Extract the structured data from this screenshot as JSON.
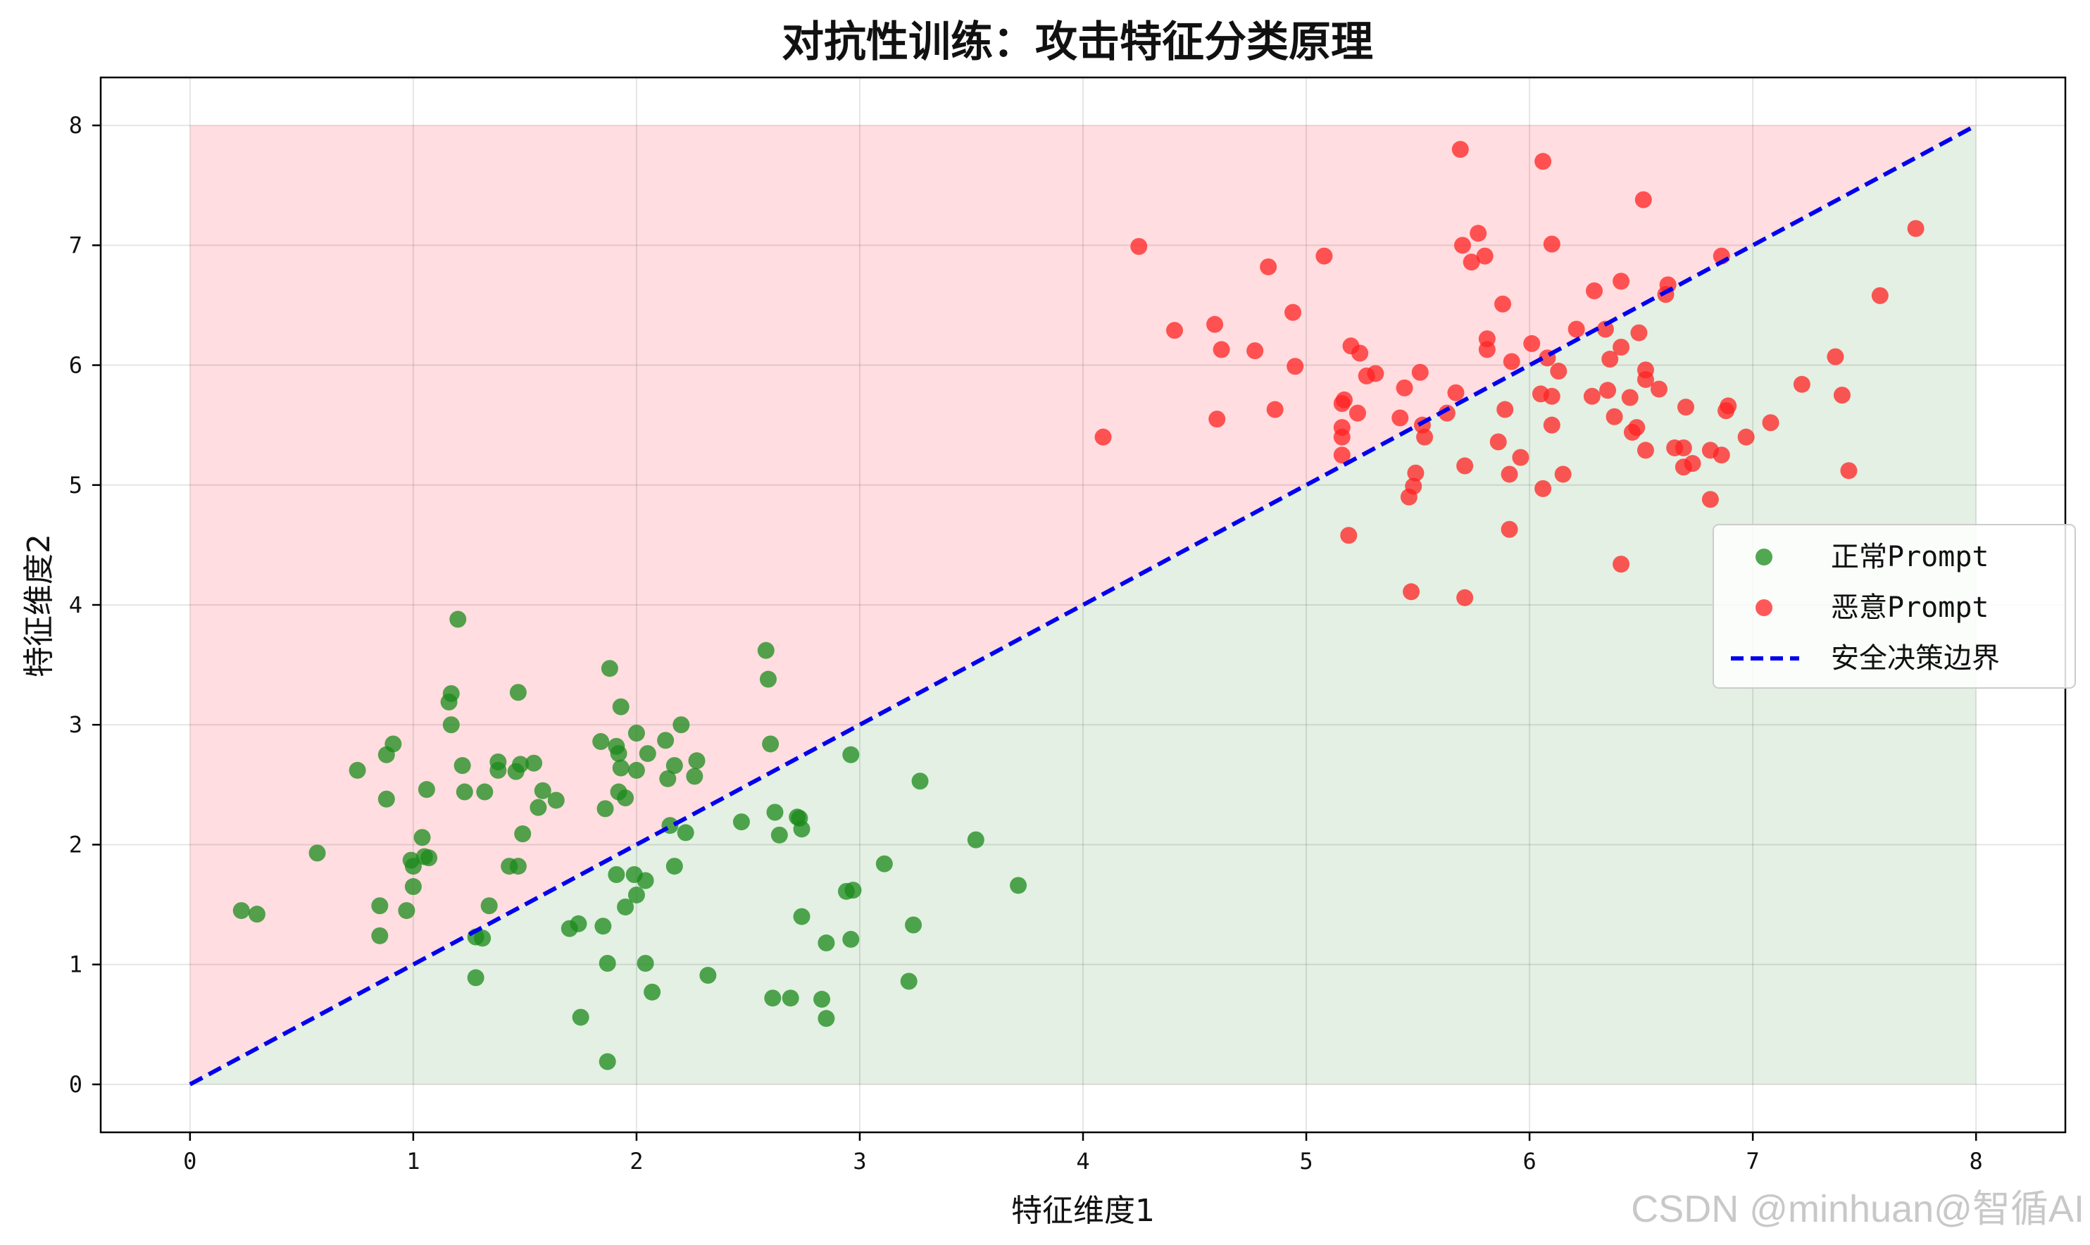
{
  "chart_data": {
    "type": "scatter",
    "title": "对抗性训练：攻击特征分类原理",
    "xlabel": "特征维度1",
    "ylabel": "特征维度2",
    "xlim": [
      -0.4,
      8.4
    ],
    "ylim": [
      -0.4,
      8.4
    ],
    "xticks": [
      0,
      1,
      2,
      3,
      4,
      5,
      6,
      7,
      8
    ],
    "yticks": [
      0,
      1,
      2,
      3,
      4,
      5,
      6,
      7,
      8
    ],
    "grid": true,
    "legend_position": "center-right",
    "regions": [
      {
        "name": "unsafe-region",
        "color": "#ffdde0",
        "polygon": [
          [
            0,
            0
          ],
          [
            0,
            8
          ],
          [
            8,
            8
          ]
        ]
      },
      {
        "name": "safe-region",
        "color": "#e3f0e3",
        "polygon": [
          [
            0,
            0
          ],
          [
            8,
            0
          ],
          [
            8,
            8
          ]
        ]
      }
    ],
    "series": [
      {
        "name": "正常Prompt",
        "color": "#1a8a1a",
        "points": [
          [
            0.23,
            1.45
          ],
          [
            0.3,
            1.42
          ],
          [
            0.57,
            1.93
          ],
          [
            0.75,
            2.62
          ],
          [
            0.85,
            1.49
          ],
          [
            0.85,
            1.24
          ],
          [
            0.88,
            2.75
          ],
          [
            0.91,
            2.84
          ],
          [
            0.88,
            2.38
          ],
          [
            0.97,
            1.45
          ],
          [
            1.0,
            1.65
          ],
          [
            0.99,
            1.87
          ],
          [
            1.0,
            1.82
          ],
          [
            1.04,
            2.06
          ],
          [
            1.05,
            1.9
          ],
          [
            1.06,
            2.46
          ],
          [
            1.07,
            1.89
          ],
          [
            1.16,
            3.19
          ],
          [
            1.17,
            3.26
          ],
          [
            1.17,
            3.0
          ],
          [
            1.2,
            3.88
          ],
          [
            1.22,
            2.66
          ],
          [
            1.23,
            2.44
          ],
          [
            1.28,
            1.23
          ],
          [
            1.28,
            0.89
          ],
          [
            1.31,
            1.22
          ],
          [
            1.32,
            2.44
          ],
          [
            1.34,
            1.49
          ],
          [
            1.38,
            2.62
          ],
          [
            1.38,
            2.69
          ],
          [
            1.43,
            1.82
          ],
          [
            1.47,
            1.82
          ],
          [
            1.46,
            2.61
          ],
          [
            1.48,
            2.67
          ],
          [
            1.47,
            3.27
          ],
          [
            1.49,
            2.09
          ],
          [
            1.54,
            2.68
          ],
          [
            1.56,
            2.31
          ],
          [
            1.58,
            2.45
          ],
          [
            1.64,
            2.37
          ],
          [
            1.7,
            1.3
          ],
          [
            1.74,
            1.34
          ],
          [
            1.75,
            0.56
          ],
          [
            1.84,
            2.86
          ],
          [
            1.85,
            1.32
          ],
          [
            1.86,
            2.3
          ],
          [
            1.87,
            1.01
          ],
          [
            1.87,
            0.19
          ],
          [
            1.88,
            3.47
          ],
          [
            1.91,
            1.75
          ],
          [
            1.91,
            2.82
          ],
          [
            1.92,
            2.76
          ],
          [
            1.92,
            2.44
          ],
          [
            1.93,
            3.15
          ],
          [
            1.93,
            2.64
          ],
          [
            1.95,
            2.39
          ],
          [
            1.95,
            1.48
          ],
          [
            1.99,
            1.75
          ],
          [
            2.0,
            2.93
          ],
          [
            2.0,
            1.58
          ],
          [
            2.0,
            2.62
          ],
          [
            2.04,
            1.7
          ],
          [
            2.04,
            1.01
          ],
          [
            2.05,
            2.76
          ],
          [
            2.07,
            0.77
          ],
          [
            2.13,
            2.87
          ],
          [
            2.14,
            2.55
          ],
          [
            2.15,
            2.16
          ],
          [
            2.17,
            2.66
          ],
          [
            2.17,
            1.82
          ],
          [
            2.2,
            3.0
          ],
          [
            2.22,
            2.1
          ],
          [
            2.26,
            2.57
          ],
          [
            2.27,
            2.7
          ],
          [
            2.32,
            0.91
          ],
          [
            2.47,
            2.19
          ],
          [
            2.58,
            3.62
          ],
          [
            2.59,
            3.38
          ],
          [
            2.6,
            2.84
          ],
          [
            2.61,
            0.72
          ],
          [
            2.62,
            2.27
          ],
          [
            2.64,
            2.08
          ],
          [
            2.69,
            0.72
          ],
          [
            2.72,
            2.23
          ],
          [
            2.73,
            2.22
          ],
          [
            2.74,
            2.13
          ],
          [
            2.74,
            1.4
          ],
          [
            2.83,
            0.71
          ],
          [
            2.85,
            1.18
          ],
          [
            2.85,
            0.55
          ],
          [
            2.94,
            1.61
          ],
          [
            2.96,
            2.75
          ],
          [
            2.96,
            1.21
          ],
          [
            2.97,
            1.62
          ],
          [
            3.11,
            1.84
          ],
          [
            3.22,
            0.86
          ],
          [
            3.24,
            1.33
          ],
          [
            3.27,
            2.53
          ],
          [
            3.52,
            2.04
          ],
          [
            3.71,
            1.66
          ]
        ]
      },
      {
        "name": "恶意Prompt",
        "color": "#ff2222",
        "points": [
          [
            4.09,
            5.4
          ],
          [
            4.25,
            6.99
          ],
          [
            4.41,
            6.29
          ],
          [
            4.59,
            6.34
          ],
          [
            4.6,
            5.55
          ],
          [
            4.62,
            6.13
          ],
          [
            4.77,
            6.12
          ],
          [
            4.83,
            6.82
          ],
          [
            4.86,
            5.63
          ],
          [
            4.94,
            6.44
          ],
          [
            4.95,
            5.99
          ],
          [
            5.08,
            6.91
          ],
          [
            5.16,
            5.68
          ],
          [
            5.16,
            5.48
          ],
          [
            5.16,
            5.4
          ],
          [
            5.16,
            5.25
          ],
          [
            5.17,
            5.71
          ],
          [
            5.19,
            4.58
          ],
          [
            5.2,
            6.16
          ],
          [
            5.23,
            5.6
          ],
          [
            5.24,
            6.1
          ],
          [
            5.27,
            5.91
          ],
          [
            5.31,
            5.93
          ],
          [
            5.42,
            5.56
          ],
          [
            5.44,
            5.81
          ],
          [
            5.46,
            4.9
          ],
          [
            5.47,
            4.11
          ],
          [
            5.48,
            4.99
          ],
          [
            5.49,
            5.1
          ],
          [
            5.51,
            5.94
          ],
          [
            5.52,
            5.5
          ],
          [
            5.53,
            5.4
          ],
          [
            5.63,
            5.6
          ],
          [
            5.67,
            5.77
          ],
          [
            5.69,
            7.8
          ],
          [
            5.7,
            7.0
          ],
          [
            5.71,
            5.16
          ],
          [
            5.71,
            4.06
          ],
          [
            5.74,
            6.86
          ],
          [
            5.77,
            7.1
          ],
          [
            5.8,
            6.91
          ],
          [
            5.81,
            6.22
          ],
          [
            5.81,
            6.13
          ],
          [
            5.86,
            5.36
          ],
          [
            5.88,
            6.51
          ],
          [
            5.89,
            5.63
          ],
          [
            5.91,
            4.63
          ],
          [
            5.91,
            5.09
          ],
          [
            5.92,
            6.03
          ],
          [
            5.96,
            5.23
          ],
          [
            6.01,
            6.18
          ],
          [
            6.05,
            5.76
          ],
          [
            6.06,
            7.7
          ],
          [
            6.06,
            4.97
          ],
          [
            6.08,
            6.06
          ],
          [
            6.1,
            5.74
          ],
          [
            6.1,
            7.01
          ],
          [
            6.1,
            5.5
          ],
          [
            6.13,
            5.95
          ],
          [
            6.15,
            5.09
          ],
          [
            6.21,
            6.3
          ],
          [
            6.28,
            5.74
          ],
          [
            6.29,
            6.62
          ],
          [
            6.34,
            6.3
          ],
          [
            6.35,
            5.79
          ],
          [
            6.36,
            6.05
          ],
          [
            6.38,
            5.57
          ],
          [
            6.41,
            6.7
          ],
          [
            6.41,
            4.34
          ],
          [
            6.41,
            6.15
          ],
          [
            6.45,
            5.73
          ],
          [
            6.46,
            5.44
          ],
          [
            6.48,
            5.48
          ],
          [
            6.49,
            6.27
          ],
          [
            6.51,
            7.38
          ],
          [
            6.52,
            5.88
          ],
          [
            6.52,
            5.96
          ],
          [
            6.52,
            5.29
          ],
          [
            6.58,
            5.8
          ],
          [
            6.61,
            6.59
          ],
          [
            6.62,
            6.67
          ],
          [
            6.65,
            5.31
          ],
          [
            6.69,
            5.31
          ],
          [
            6.69,
            5.15
          ],
          [
            6.7,
            5.65
          ],
          [
            6.73,
            5.18
          ],
          [
            6.81,
            5.29
          ],
          [
            6.81,
            4.88
          ],
          [
            6.86,
            6.91
          ],
          [
            6.86,
            5.25
          ],
          [
            6.88,
            5.62
          ],
          [
            6.89,
            5.66
          ],
          [
            6.97,
            5.4
          ],
          [
            7.08,
            5.52
          ],
          [
            7.22,
            5.84
          ],
          [
            7.37,
            6.07
          ],
          [
            7.4,
            5.75
          ],
          [
            7.43,
            5.12
          ],
          [
            7.57,
            6.58
          ],
          [
            7.73,
            7.14
          ]
        ]
      }
    ],
    "decision_boundary": {
      "name": "安全决策边界",
      "color": "#0000ee",
      "style": "dashed",
      "points": [
        [
          0,
          0
        ],
        [
          8,
          8
        ]
      ]
    }
  },
  "watermark": "CSDN @minhuan@智循AI"
}
